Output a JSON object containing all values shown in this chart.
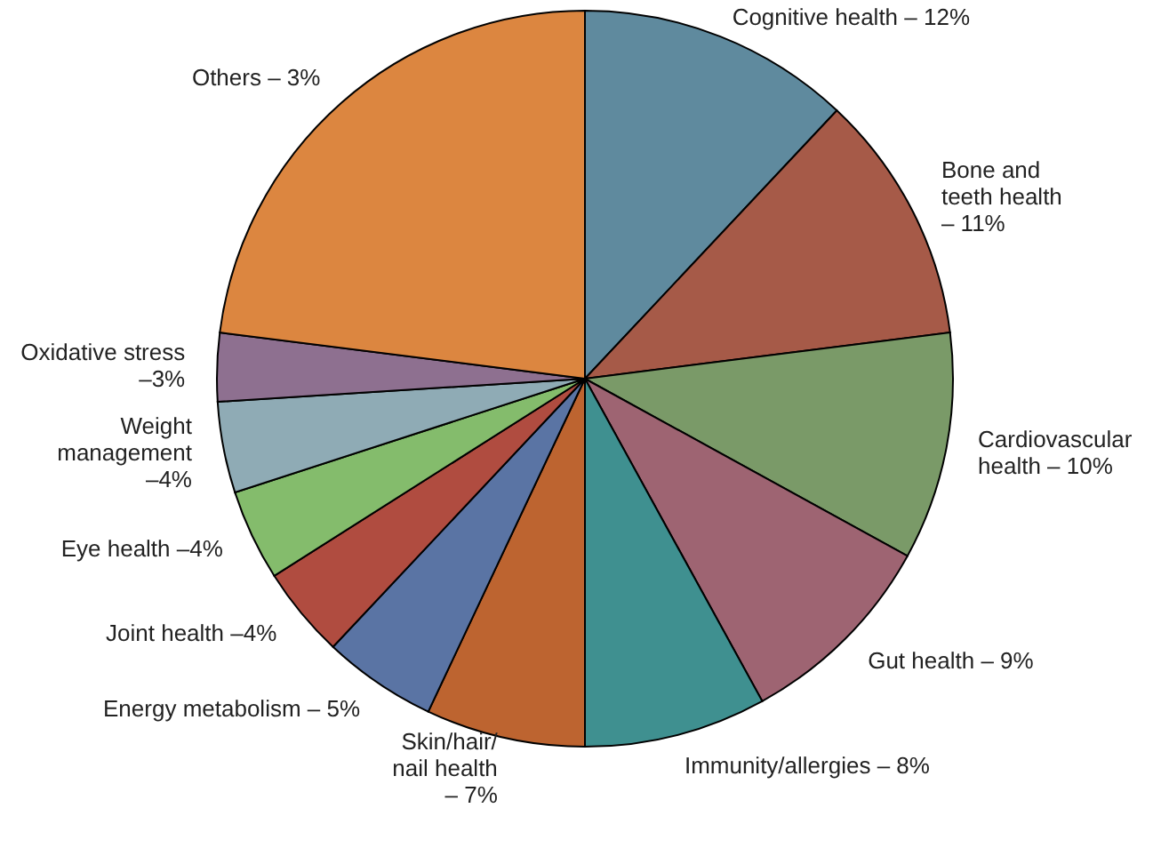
{
  "chart_data": {
    "type": "pie",
    "categories": [
      "Cognitive health – 12%",
      "Bone and\nteeth health\n– 11%",
      "Cardiovascular\nhealth – 10%",
      "Gut health – 9%",
      "Immunity/allergies – 8%",
      "Skin/hair/\nnail health\n– 7%",
      "Energy metabolism – 5%",
      "Joint health –4%",
      "Eye health –4%",
      "Weight\nmanagement\n–4%",
      "Oxidative stress\n–3%",
      "Others – 3%"
    ],
    "values": [
      12,
      11,
      10,
      9,
      8,
      7,
      5,
      4,
      4,
      4,
      3,
      23
    ],
    "colors": [
      "#5f8a9e",
      "#a65a48",
      "#7a9a68",
      "#9e6472",
      "#3f9090",
      "#bd6430",
      "#5a74a4",
      "#b04c40",
      "#84bc6c",
      "#8fabb5",
      "#8e7090",
      "#dc8640"
    ]
  }
}
